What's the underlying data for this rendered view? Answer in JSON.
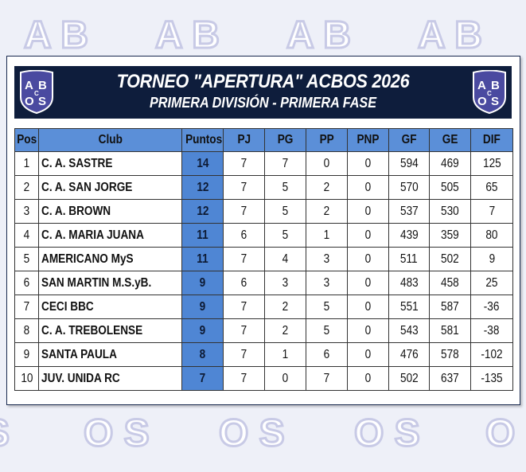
{
  "header": {
    "title": "TORNEO \"APERTURA\" ACBOS 2026",
    "subtitle": "PRIMERA DIVISIÓN - PRIMERA FASE",
    "logo_text": "ABCOS"
  },
  "colors": {
    "banner": "#0e1d3c",
    "header_row": "#5b8fd8",
    "points_column": "#4f86d4",
    "logo": "#4a4aa0"
  },
  "table": {
    "columns": [
      "Pos",
      "Club",
      "Puntos",
      "PJ",
      "PG",
      "PP",
      "PNP",
      "GF",
      "GE",
      "DIF"
    ],
    "rows": [
      [
        "1",
        "C. A. SASTRE",
        "14",
        "7",
        "7",
        "0",
        "0",
        "594",
        "469",
        "125"
      ],
      [
        "2",
        "C. A. SAN JORGE",
        "12",
        "7",
        "5",
        "2",
        "0",
        "570",
        "505",
        "65"
      ],
      [
        "3",
        "C. A. BROWN",
        "12",
        "7",
        "5",
        "2",
        "0",
        "537",
        "530",
        "7"
      ],
      [
        "4",
        "C. A. MARIA JUANA",
        "11",
        "6",
        "5",
        "1",
        "0",
        "439",
        "359",
        "80"
      ],
      [
        "5",
        "AMERICANO MyS",
        "11",
        "7",
        "4",
        "3",
        "0",
        "511",
        "502",
        "9"
      ],
      [
        "6",
        "SAN MARTIN M.S.yB.",
        "9",
        "6",
        "3",
        "3",
        "0",
        "483",
        "458",
        "25"
      ],
      [
        "7",
        "CECI BBC",
        "9",
        "7",
        "2",
        "5",
        "0",
        "551",
        "587",
        "-36"
      ],
      [
        "8",
        "C. A. TREBOLENSE",
        "9",
        "7",
        "2",
        "5",
        "0",
        "543",
        "581",
        "-38"
      ],
      [
        "9",
        "SANTA PAULA",
        "8",
        "7",
        "1",
        "6",
        "0",
        "476",
        "578",
        "-102"
      ],
      [
        "10",
        "JUV. UNIDA RC",
        "7",
        "7",
        "0",
        "7",
        "0",
        "502",
        "637",
        "-135"
      ]
    ]
  }
}
